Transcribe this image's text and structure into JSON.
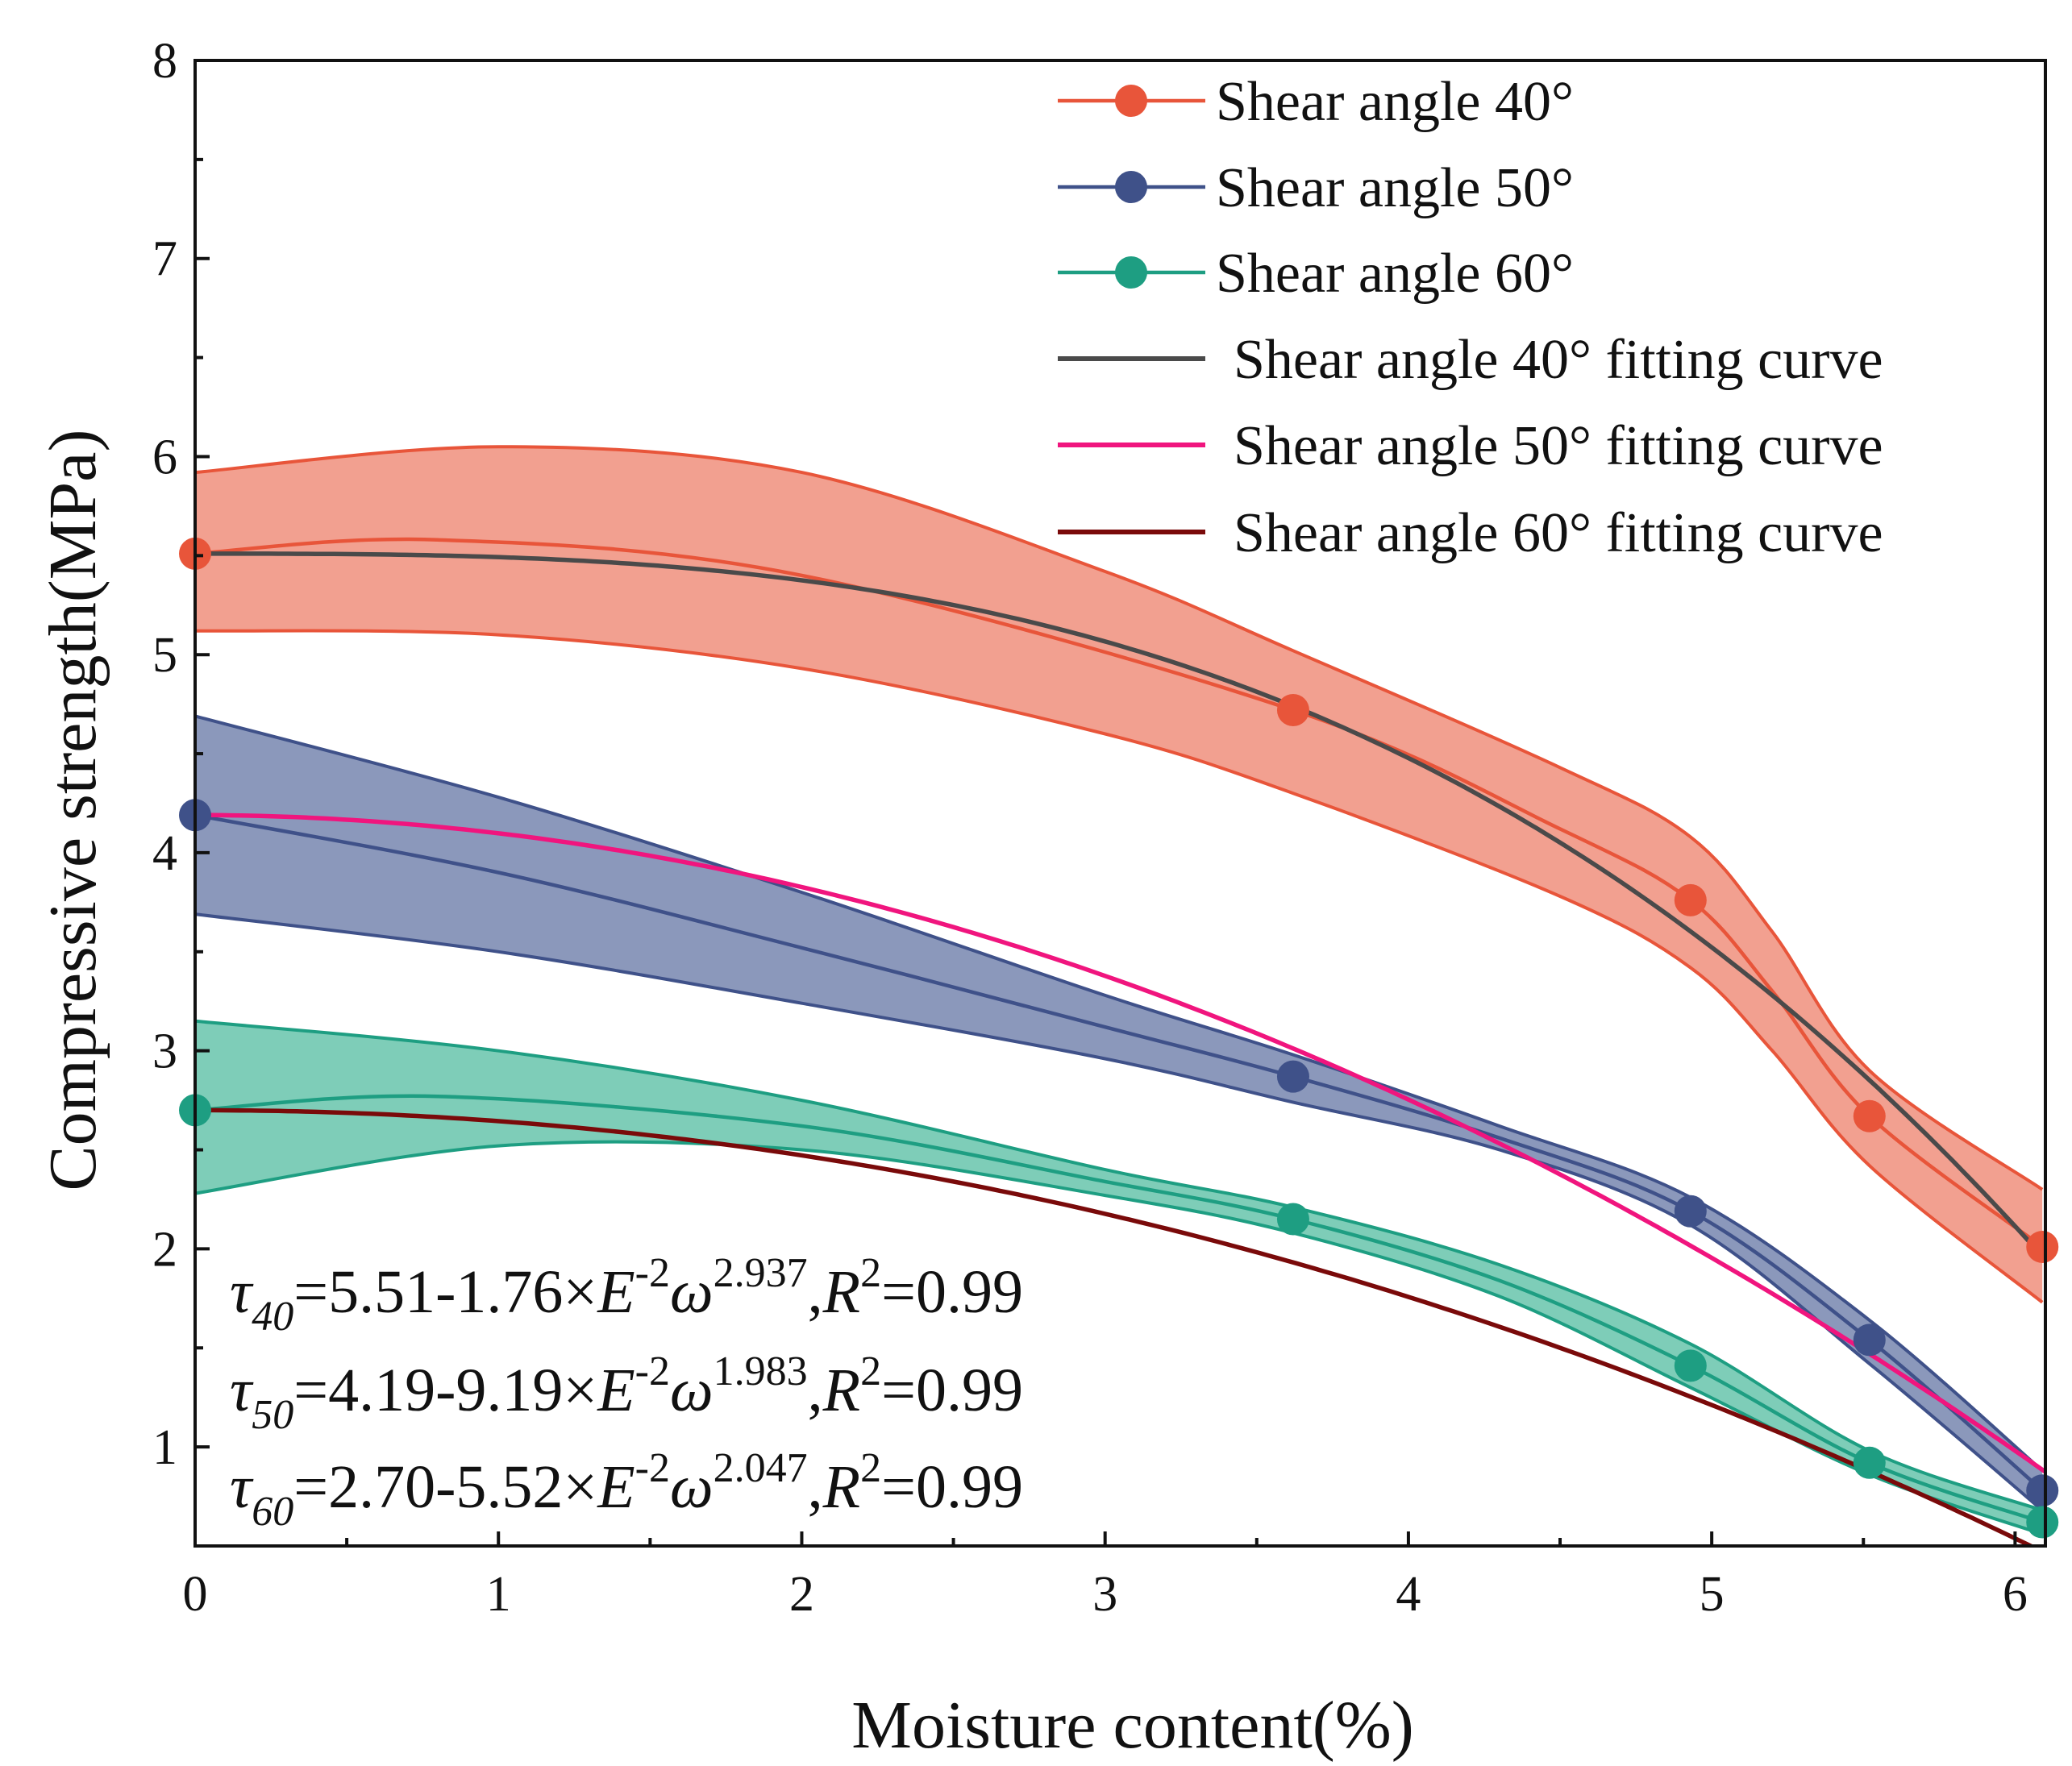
{
  "chart_data": {
    "type": "line",
    "xlabel": "Moisture content(%)",
    "ylabel": "Compressive strength(MPa)",
    "xlim": [
      0,
      6.1
    ],
    "ylim": [
      0.5,
      8
    ],
    "xticks": [
      "0",
      "1",
      "2",
      "3",
      "4",
      "5",
      "6"
    ],
    "yticks": [
      "1",
      "2",
      "3",
      "4",
      "5",
      "6",
      "7",
      "8"
    ],
    "x": [
      0,
      3.62,
      4.93,
      5.52,
      6.09
    ],
    "series": [
      {
        "name": "Shear angle 40°",
        "color": "#E8553A",
        "fill": "#F2A090",
        "values": [
          5.51,
          4.72,
          3.76,
          2.67,
          2.01
        ],
        "band_upper": [
          [
            0,
            5.92
          ],
          [
            1,
            6.05
          ],
          [
            2,
            5.92
          ],
          [
            3,
            5.42
          ],
          [
            3.62,
            5.02
          ],
          [
            4.5,
            4.43
          ],
          [
            4.93,
            4.08
          ],
          [
            5.2,
            3.6
          ],
          [
            5.52,
            2.9
          ],
          [
            6.09,
            2.3
          ]
        ],
        "band_lower": [
          [
            0,
            5.12
          ],
          [
            1,
            5.1
          ],
          [
            2,
            4.93
          ],
          [
            3,
            4.6
          ],
          [
            3.62,
            4.3
          ],
          [
            4.5,
            3.78
          ],
          [
            4.93,
            3.42
          ],
          [
            5.2,
            3.0
          ],
          [
            5.52,
            2.42
          ],
          [
            6.09,
            1.73
          ]
        ],
        "connector": [
          [
            0,
            5.51
          ],
          [
            0.8,
            5.58
          ],
          [
            2,
            5.4
          ],
          [
            3.62,
            4.72
          ],
          [
            4.5,
            4.12
          ],
          [
            4.93,
            3.76
          ],
          [
            5.2,
            3.3
          ],
          [
            5.52,
            2.67
          ],
          [
            6.09,
            2.01
          ]
        ]
      },
      {
        "name": "Shear angle 50°",
        "color": "#3F5189",
        "fill": "#8B98BB",
        "values": [
          4.19,
          2.87,
          2.19,
          1.54,
          0.78
        ],
        "band_upper": [
          [
            0,
            4.69
          ],
          [
            1,
            4.28
          ],
          [
            2,
            3.8
          ],
          [
            3,
            3.28
          ],
          [
            3.62,
            2.98
          ],
          [
            4.3,
            2.62
          ],
          [
            4.93,
            2.26
          ],
          [
            5.52,
            1.64
          ],
          [
            6.09,
            0.88
          ]
        ],
        "band_lower": [
          [
            0,
            3.69
          ],
          [
            1,
            3.5
          ],
          [
            2,
            3.24
          ],
          [
            3,
            2.96
          ],
          [
            3.62,
            2.74
          ],
          [
            4.3,
            2.5
          ],
          [
            4.93,
            2.12
          ],
          [
            5.52,
            1.42
          ],
          [
            6.09,
            0.68
          ]
        ],
        "connector": [
          [
            0,
            4.19
          ],
          [
            1,
            3.9
          ],
          [
            2,
            3.52
          ],
          [
            3,
            3.12
          ],
          [
            3.62,
            2.87
          ],
          [
            4.3,
            2.56
          ],
          [
            4.93,
            2.19
          ],
          [
            5.52,
            1.54
          ],
          [
            6.09,
            0.78
          ]
        ]
      },
      {
        "name": "Shear angle 60°",
        "color": "#1E9E82",
        "fill": "#7ECDB8",
        "values": [
          2.7,
          2.15,
          1.41,
          0.92,
          0.62
        ],
        "band_upper": [
          [
            0,
            3.15
          ],
          [
            1,
            3.0
          ],
          [
            2,
            2.75
          ],
          [
            3,
            2.4
          ],
          [
            3.62,
            2.21
          ],
          [
            4.3,
            1.92
          ],
          [
            4.93,
            1.52
          ],
          [
            5.52,
            0.98
          ],
          [
            6.09,
            0.68
          ]
        ],
        "band_lower": [
          [
            0,
            2.28
          ],
          [
            1,
            2.52
          ],
          [
            2,
            2.5
          ],
          [
            3,
            2.27
          ],
          [
            3.62,
            2.08
          ],
          [
            4.3,
            1.76
          ],
          [
            4.93,
            1.3
          ],
          [
            5.52,
            0.86
          ],
          [
            6.09,
            0.56
          ]
        ],
        "connector": [
          [
            0,
            2.7
          ],
          [
            0.8,
            2.77
          ],
          [
            2,
            2.62
          ],
          [
            3,
            2.34
          ],
          [
            3.62,
            2.15
          ],
          [
            4.3,
            1.84
          ],
          [
            4.93,
            1.41
          ],
          [
            5.52,
            0.92
          ],
          [
            6.09,
            0.62
          ]
        ]
      },
      {
        "name": "Shear angle 40° fitting curve",
        "color": "#4A4A4A",
        "fit": {
          "a": 5.51,
          "b": 0.0176,
          "n": 2.937
        }
      },
      {
        "name": "Shear angle 50° fitting curve",
        "color": "#F0157E",
        "fit": {
          "a": 4.19,
          "b": 0.0919,
          "n": 1.983
        }
      },
      {
        "name": "Shear angle 60° fitting curve",
        "color": "#7A0A0A",
        "fit": {
          "a": 2.7,
          "b": 0.0552,
          "n": 2.047
        }
      }
    ],
    "legend_position": "top-right",
    "equations": [
      {
        "sub": "40",
        "a": "5.51",
        "b": "1.76",
        "exp": "2.937",
        "r2": "0.99"
      },
      {
        "sub": "50",
        "a": "4.19",
        "b": "9.19",
        "exp": "1.983",
        "r2": "0.99"
      },
      {
        "sub": "60",
        "a": "2.70",
        "b": "5.52",
        "exp": "2.047",
        "r2": "0.99"
      }
    ],
    "equation_text": {
      "tau": "τ",
      "eq": "=",
      "minus": "-",
      "times": "×",
      "E": "E",
      "neg2": "-2",
      "omega": "ω",
      "comma": ",",
      "R": "R",
      "two": "2"
    }
  }
}
